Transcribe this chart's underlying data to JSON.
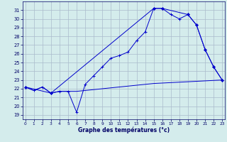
{
  "title": "Graphe des températures (°c)",
  "bg_color": "#d4ecec",
  "grid_color": "#aabbcc",
  "line_color": "#0000cc",
  "x_ticks": [
    0,
    1,
    2,
    3,
    4,
    5,
    6,
    7,
    8,
    9,
    10,
    11,
    12,
    13,
    14,
    15,
    16,
    17,
    18,
    19,
    20,
    21,
    22,
    23
  ],
  "y_ticks": [
    19,
    20,
    21,
    22,
    23,
    24,
    25,
    26,
    27,
    28,
    29,
    30,
    31
  ],
  "ylim": [
    18.5,
    32.0
  ],
  "xlim": [
    -0.3,
    23.3
  ],
  "line1_x": [
    0,
    1,
    2,
    3,
    4,
    5,
    6,
    7,
    8,
    9,
    10,
    11,
    12,
    13,
    14,
    15,
    16,
    17,
    18,
    19,
    20,
    21,
    22,
    23
  ],
  "line1_y": [
    22.2,
    21.8,
    22.2,
    21.5,
    21.7,
    21.7,
    19.3,
    22.5,
    23.5,
    24.5,
    25.5,
    25.8,
    26.2,
    27.5,
    28.5,
    31.2,
    31.2,
    30.5,
    30.0,
    30.5,
    29.3,
    26.5,
    24.5,
    23.0
  ],
  "line2_x": [
    0,
    1,
    2,
    3,
    4,
    5,
    6,
    7,
    8,
    9,
    10,
    11,
    12,
    13,
    14,
    15,
    16,
    17,
    18,
    19,
    20,
    21,
    22,
    23
  ],
  "line2_y": [
    22.2,
    21.8,
    22.2,
    21.5,
    21.7,
    21.7,
    21.7,
    21.8,
    21.9,
    22.0,
    22.1,
    22.2,
    22.3,
    22.4,
    22.5,
    22.6,
    22.65,
    22.7,
    22.75,
    22.8,
    22.85,
    22.9,
    22.95,
    23.0
  ],
  "line3_x": [
    0,
    3,
    15,
    16,
    19,
    20,
    21,
    22,
    23
  ],
  "line3_y": [
    22.2,
    21.5,
    31.2,
    31.2,
    30.5,
    29.3,
    26.5,
    24.5,
    23.0
  ]
}
